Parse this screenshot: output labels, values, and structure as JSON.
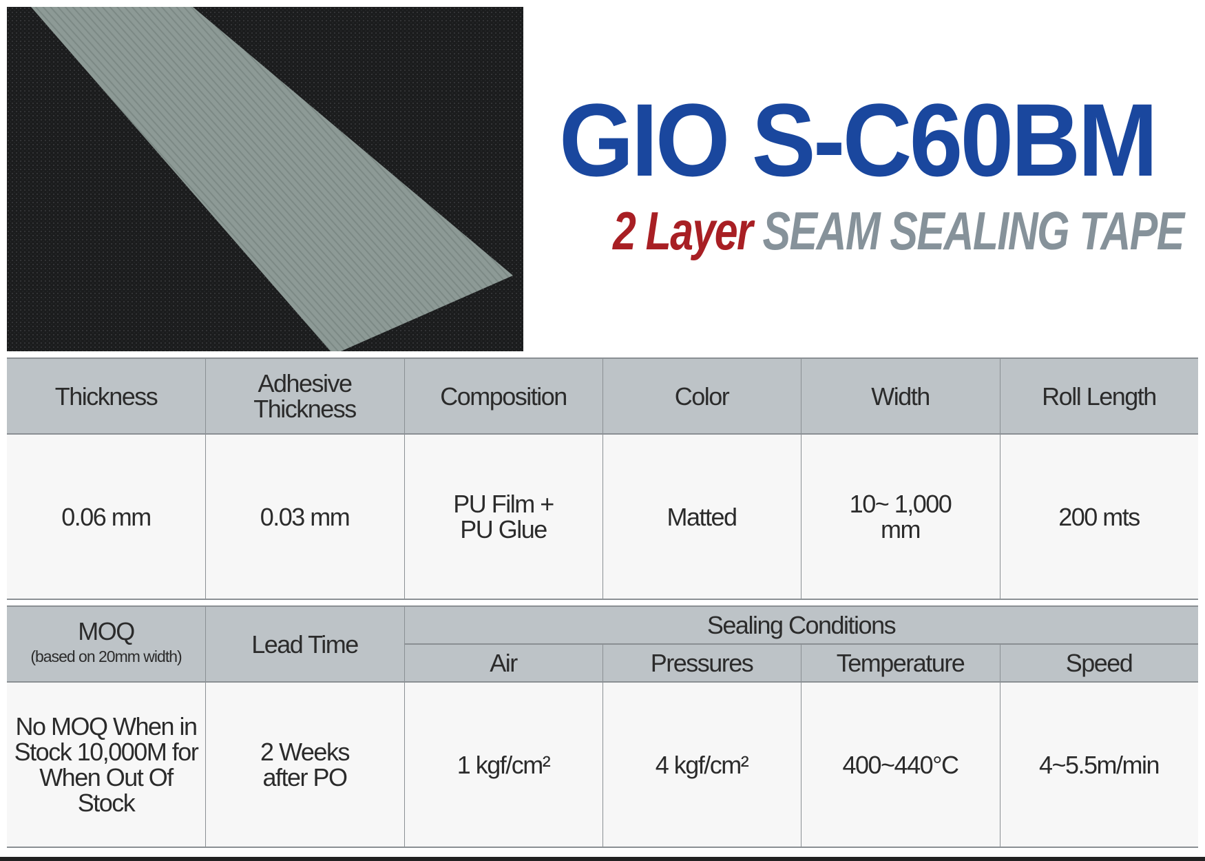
{
  "product": {
    "title": "GIO S-C60BM",
    "subtitle_highlight": "2 Layer",
    "subtitle_rest": "SEAM SEALING TAPE",
    "colors": {
      "title": "#1a479e",
      "highlight": "#a81f24",
      "subtitle": "#86929a",
      "header_bg": "#bdc3c7",
      "body_bg": "#f7f7f7"
    }
  },
  "spec_table": {
    "headers": [
      "Thickness",
      "Adhesive Thickness",
      "Composition",
      "Color",
      "Width",
      "Roll Length"
    ],
    "values": [
      "0.06 mm",
      "0.03 mm",
      "PU Film + PU Glue",
      "Matted",
      "10~ 1,000 mm",
      "200 mts"
    ]
  },
  "conditions_table": {
    "moq_header": "MOQ",
    "moq_note": "(based on 20mm width)",
    "lead_time_header": "Lead Time",
    "group_header": "Sealing Conditions",
    "sub_headers": [
      "Air",
      "Pressures",
      "Temperature",
      "Speed"
    ],
    "moq_value": "No MOQ When in Stock 10,000M for When Out Of Stock",
    "lead_time_value": "2 Weeks after PO",
    "values": [
      "1 kgf/cm²",
      "4 kgf/cm²",
      "400~440°C",
      "4~5.5m/min"
    ]
  }
}
